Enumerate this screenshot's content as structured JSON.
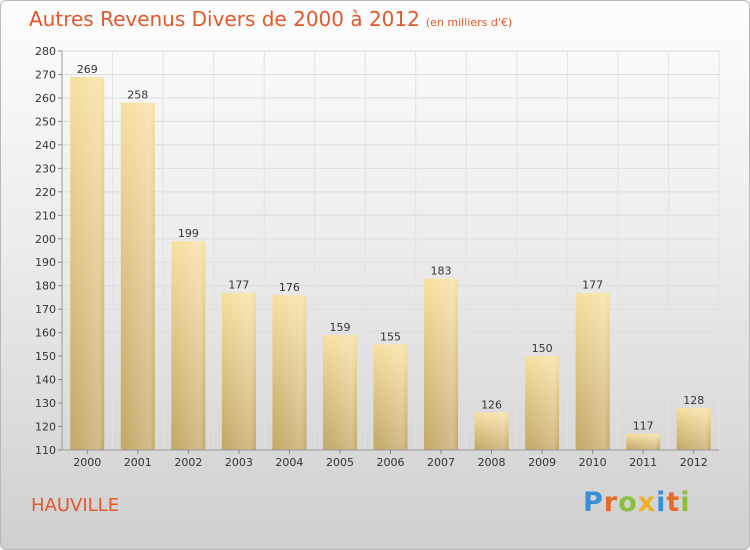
{
  "chart_data": {
    "type": "bar",
    "title": "Autres Revenus Divers de 2000 à 2012",
    "subtitle": "(en milliers d'€)",
    "categories": [
      "2000",
      "2001",
      "2002",
      "2003",
      "2004",
      "2005",
      "2006",
      "2007",
      "2008",
      "2009",
      "2010",
      "2011",
      "2012"
    ],
    "values": [
      269,
      258,
      199,
      177,
      176,
      159,
      155,
      183,
      126,
      150,
      177,
      117,
      128
    ],
    "ylim": [
      110,
      280
    ],
    "ytick_step": 10,
    "grid": true,
    "colors": {
      "bar_light": "#f5dc9b",
      "bar_dark": "#c2a664",
      "title": "#e4572a"
    }
  },
  "location": "HAUVILLE",
  "brand": {
    "name": "Proxiti",
    "letters": [
      {
        "ch": "P",
        "color": "#3a8fd6"
      },
      {
        "ch": "r",
        "color": "#e8692a"
      },
      {
        "ch": "o",
        "color": "#8cbf3f"
      },
      {
        "ch": "x",
        "color": "#f2b024"
      },
      {
        "ch": "i",
        "color": "#3a8fd6"
      },
      {
        "ch": "t",
        "color": "#e8692a"
      },
      {
        "ch": "i",
        "color": "#8cbf3f"
      }
    ]
  }
}
